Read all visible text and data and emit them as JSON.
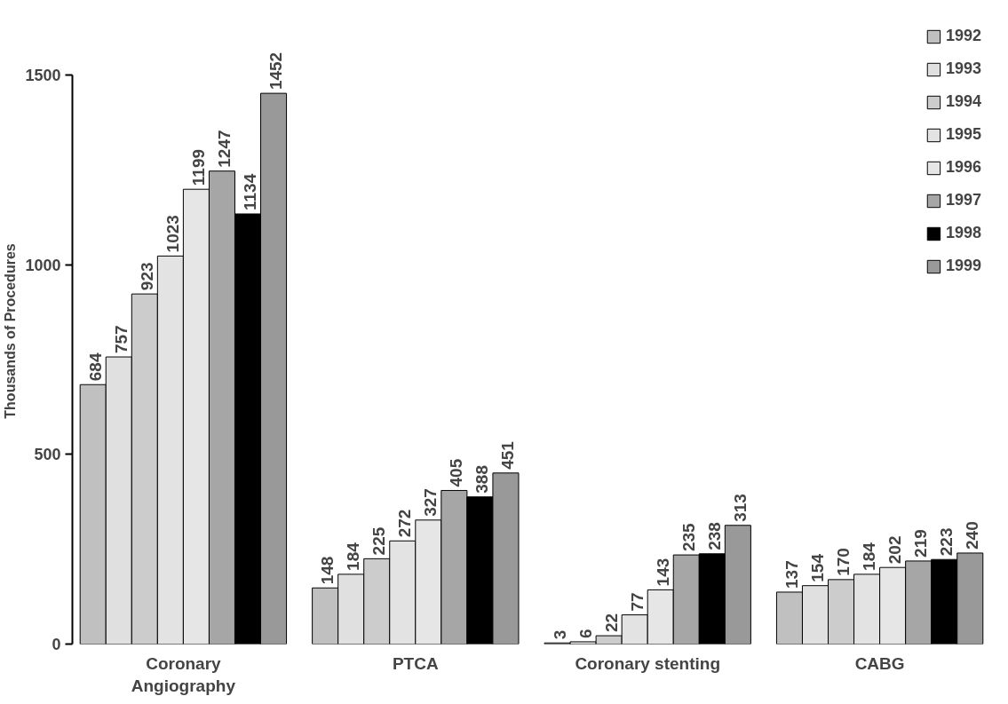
{
  "chart_data": {
    "type": "bar",
    "ylabel": "Thousands of Procedures",
    "categories": [
      "Coronary Angiography",
      "PTCA",
      "Coronary stenting",
      "CABG"
    ],
    "series": [
      {
        "name": "1992",
        "color": "#c0c0c0",
        "values": [
          684,
          148,
          3,
          137
        ]
      },
      {
        "name": "1993",
        "color": "#e0e0e0",
        "values": [
          757,
          184,
          6,
          154
        ]
      },
      {
        "name": "1994",
        "color": "#cccccc",
        "values": [
          923,
          225,
          22,
          170
        ]
      },
      {
        "name": "1995",
        "color": "#e3e3e3",
        "values": [
          1023,
          272,
          77,
          184
        ]
      },
      {
        "name": "1996",
        "color": "#e6e6e6",
        "values": [
          1199,
          327,
          143,
          202
        ]
      },
      {
        "name": "1997",
        "color": "#a6a6a6",
        "values": [
          1247,
          405,
          235,
          219
        ]
      },
      {
        "name": "1998",
        "color": "#000000",
        "values": [
          1134,
          388,
          238,
          223
        ]
      },
      {
        "name": "1999",
        "color": "#999999",
        "values": [
          1452,
          451,
          313,
          240
        ]
      }
    ],
    "ylim": [
      0,
      1500
    ],
    "yticks": [
      0,
      500,
      1000,
      1500
    ],
    "grid": false,
    "legend": "top right",
    "data_labels": true
  }
}
